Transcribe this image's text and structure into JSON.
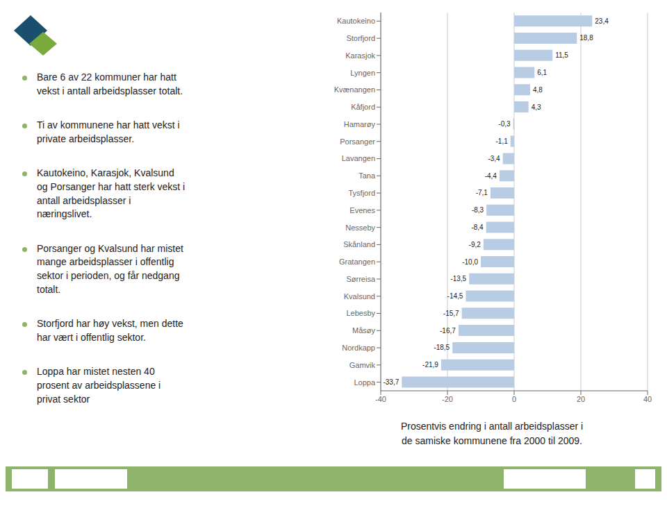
{
  "chart_data": {
    "type": "bar",
    "orientation": "horizontal",
    "categories": [
      "Kautokeino",
      "Storfjord",
      "Karasjok",
      "Lyngen",
      "Kvænangen",
      "Kåfjord",
      "Hamarøy",
      "Porsanger",
      "Lavangen",
      "Tana",
      "Tysfjord",
      "Evenes",
      "Nesseby",
      "Skånland",
      "Gratangen",
      "Sørreisa",
      "Kvalsund",
      "Lebesby",
      "Måsøy",
      "Nordkapp",
      "Gamvik",
      "Loppa"
    ],
    "values": [
      23.4,
      18.8,
      11.5,
      6.1,
      4.8,
      4.3,
      -0.3,
      -1.1,
      -3.4,
      -4.4,
      -7.1,
      -8.3,
      -8.4,
      -9.2,
      -10.0,
      -13.5,
      -14.5,
      -15.7,
      -16.7,
      -18.5,
      -21.9,
      -33.7
    ],
    "value_labels": [
      "23,4",
      "18,8",
      "11,5",
      "6,1",
      "4,8",
      "4,3",
      "-0,3",
      "-1,1",
      "-3,4",
      "-4,4",
      "-7,1",
      "-8,3",
      "-8,4",
      "-9,2",
      "-10,0",
      "-13,5",
      "-14,5",
      "-15,7",
      "-16,7",
      "-18,5",
      "-21,9",
      "-33,7"
    ],
    "data_labels": true,
    "color": "#b8cce4",
    "xlim": [
      -40,
      40
    ],
    "xticks": [
      -40,
      -20,
      0,
      20,
      40
    ],
    "grid": true,
    "xlabel": "Prosentvis endring i antall arbeidsplasser i\nde samiske kommunene fra 2000 til 2009.",
    "annotations": [
      "Bare 6 av 22 kommuner har hatt\nvekst i antall arbeidsplasser totalt.",
      "Ti av kommunene har hatt vekst i\nprivate arbeidsplasser.",
      "Kautokeino, Karasjok, Kvalsund\nog Porsanger har hatt sterk vekst i\nantall arbeidsplasser i\nnæringslivet.",
      "Porsanger og Kvalsund har mistet\nmange arbeidsplasser i offentlig\nsektor i perioden, og får nedgang\ntotalt.",
      "Storfjord har høy vekst, men dette\nhar vært i offentlig sektor.",
      "Loppa har mistet nesten 40\nprosent av arbeidsplassene i\nprivat sektor"
    ]
  }
}
